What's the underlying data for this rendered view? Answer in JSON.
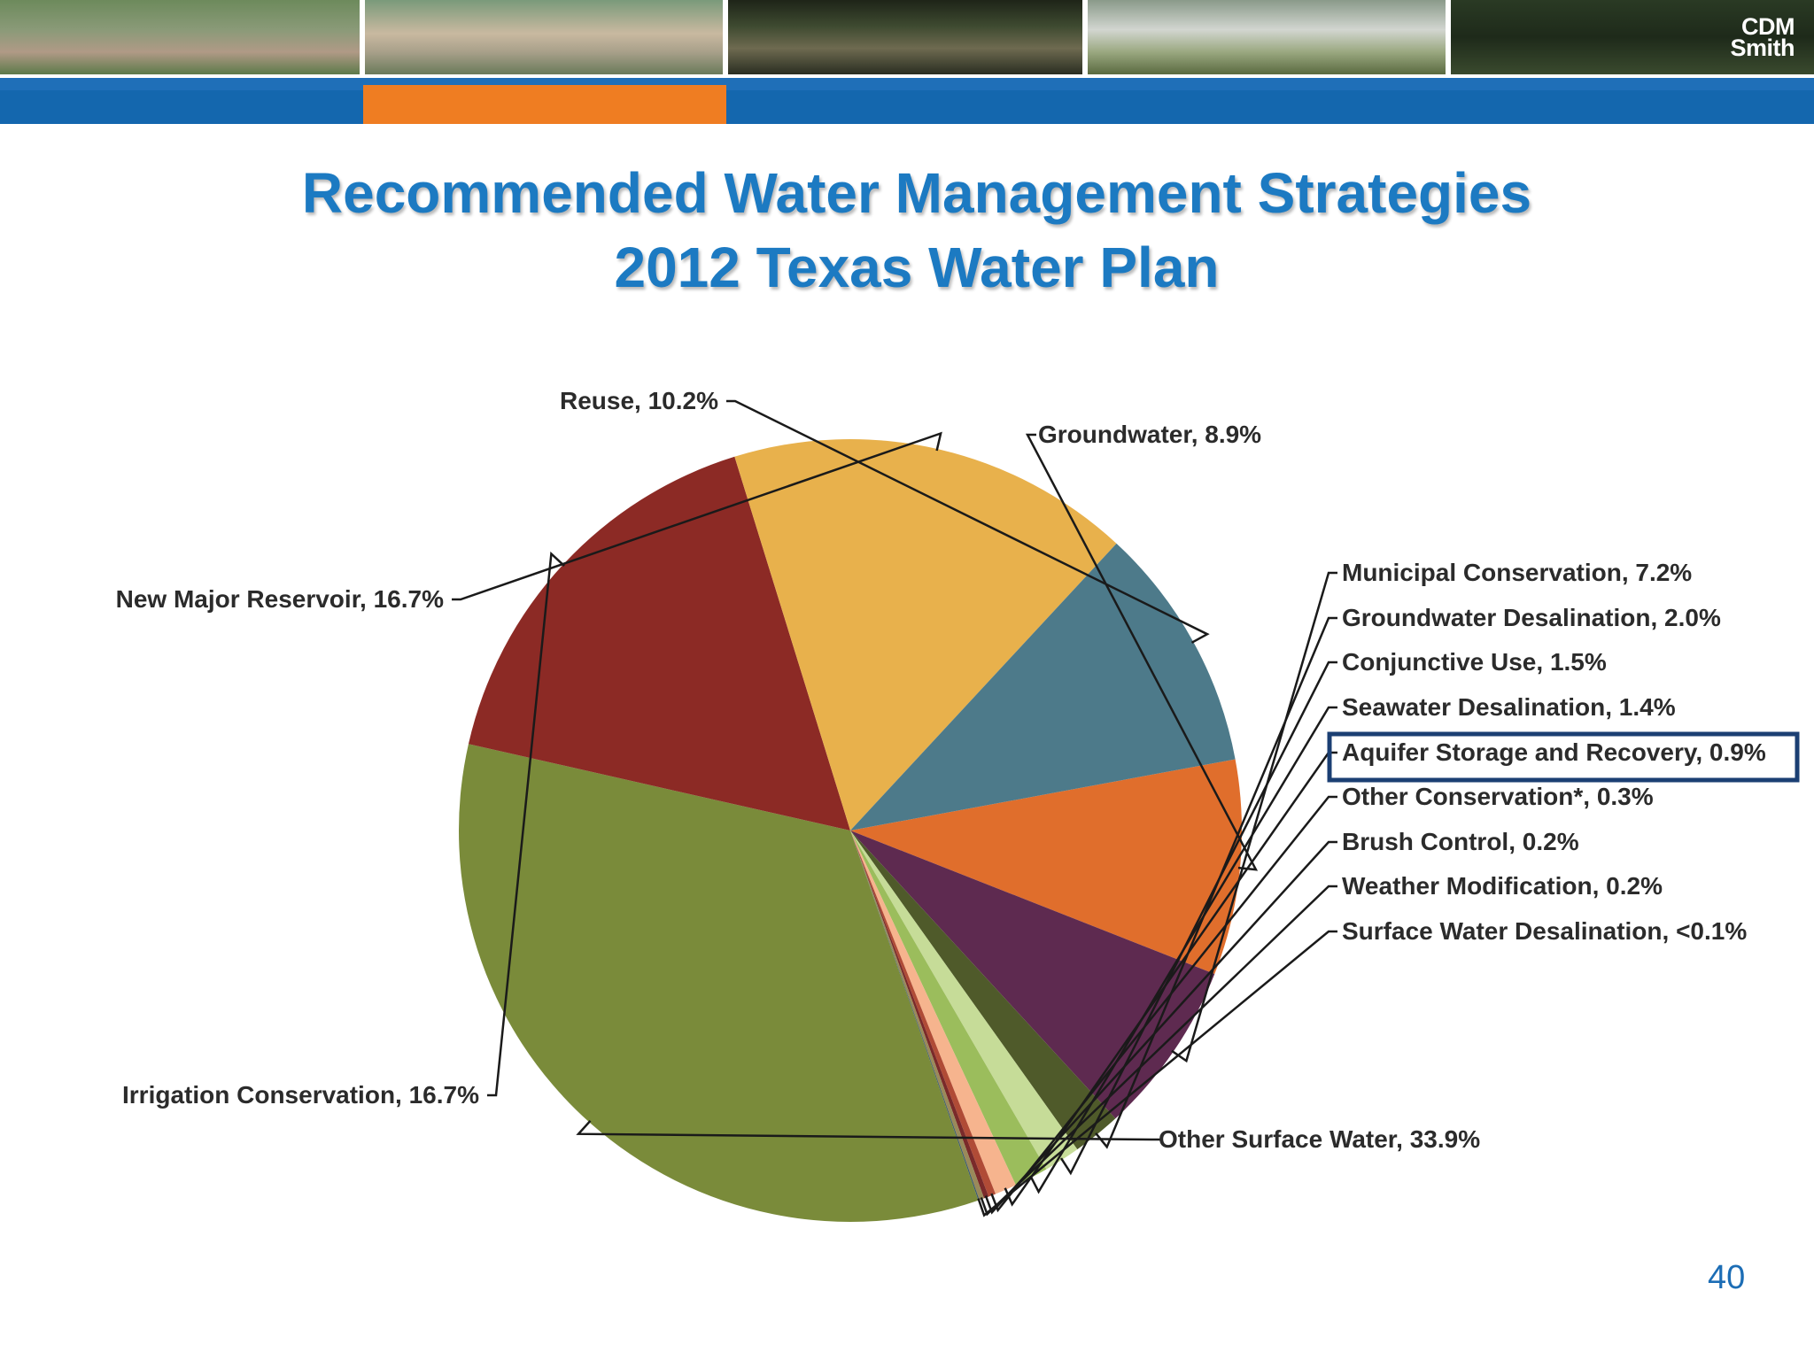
{
  "header": {
    "logo_line1": "CDM",
    "logo_line2": "Smith"
  },
  "slide": {
    "title_line1": "Recommended Water Management Strategies",
    "title_line2": "2012 Texas Water Plan",
    "page_number": "40"
  },
  "chart_data": {
    "type": "pie",
    "title": "",
    "slices": [
      {
        "name": "Groundwater",
        "value": 8.9,
        "label": "Groundwater, 8.9%",
        "color": "#e06e2c"
      },
      {
        "name": "Municipal Conservation",
        "value": 7.2,
        "label": "Municipal Conservation, 7.2%",
        "color": "#5e2a50"
      },
      {
        "name": "Groundwater Desalination",
        "value": 2.0,
        "label": "Groundwater Desalination, 2.0%",
        "color": "#4f5a2a"
      },
      {
        "name": "Conjunctive Use",
        "value": 1.5,
        "label": "Conjunctive Use, 1.5%",
        "color": "#c6dc98"
      },
      {
        "name": "Seawater Desalination",
        "value": 1.4,
        "label": "Seawater Desalination, 1.4%",
        "color": "#9bbd5c"
      },
      {
        "name": "Aquifer Storage and Recovery",
        "value": 0.9,
        "label": "Aquifer Storage and Recovery, 0.9%",
        "color": "#f6b48e",
        "highlighted": true
      },
      {
        "name": "Other Conservation*",
        "value": 0.3,
        "label": "Other Conservation*, 0.3%",
        "color": "#b04b36"
      },
      {
        "name": "Brush Control",
        "value": 0.2,
        "label": "Brush Control, 0.2%",
        "color": "#7a2a2a"
      },
      {
        "name": "Weather Modification",
        "value": 0.2,
        "label": "Weather Modification, 0.2%",
        "color": "#9a8a5a"
      },
      {
        "name": "Surface Water Desalination",
        "value": 0.05,
        "label": "Surface Water Desalination, <0.1%",
        "color": "#3d5b6b"
      },
      {
        "name": "Other Surface Water",
        "value": 33.9,
        "label": "Other Surface Water, 33.9%",
        "color": "#7a8b3a"
      },
      {
        "name": "Irrigation Conservation",
        "value": 16.7,
        "label": "Irrigation Conservation, 16.7%",
        "color": "#8c2a25"
      },
      {
        "name": "New Major Reservoir",
        "value": 16.7,
        "label": "New Major Reservoir, 16.7%",
        "color": "#e8b14c"
      },
      {
        "name": "Reuse",
        "value": 10.2,
        "label": "Reuse, 10.2%",
        "color": "#4d7a8a"
      }
    ],
    "legend": "none",
    "highlight_box_color": "#1b3f73"
  },
  "colors": {
    "title": "#1c7ac2",
    "stripe_blue": "#1467ae",
    "stripe_orange": "#ef7d22",
    "page_number": "#1c6db5"
  }
}
